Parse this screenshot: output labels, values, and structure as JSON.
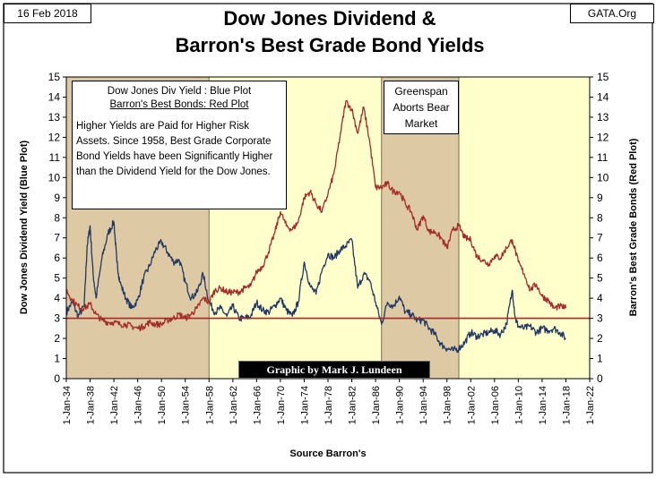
{
  "header": {
    "date": "16 Feb 2018",
    "site": "GATA.Org",
    "title_line1": "Dow Jones Dividend &",
    "title_line2": "Barron's Best Grade Bond Yields"
  },
  "legend": {
    "line1": "Dow Jones Div Yield : Blue Plot",
    "line2": "Barron's Best Bonds: Red Plot",
    "note": "Higher Yields are Paid for Higher Risk Assets.  Since 1958, Best Grade Corporate Bond Yields have been Significantly Higher than the Dividend Yield for the Dow Jones."
  },
  "annotation": {
    "text": "Greenspan Aborts Bear Market"
  },
  "credit": "Graphic by Mark J. Lundeen",
  "colors": {
    "plot_background": "#ffffcc",
    "shaded_region": "#ddc9a3",
    "dow_series": "#1f3864",
    "bond_series": "#a52a2a",
    "reference_line": "#a52a2a",
    "frame": "#000000"
  },
  "chart_data": {
    "type": "line",
    "xlabel": "Source Barron's",
    "ylabel_left": "Dow Jones Dividend Yield (Blue Plot)",
    "ylabel_right": "Barron's Best Grade Bonds (Red Plot)",
    "x_range": [
      "1934-01-01",
      "2022-01-01"
    ],
    "x_ticks": [
      "1-Jan-34",
      "1-Jan-38",
      "1-Jan-42",
      "1-Jan-46",
      "1-Jan-50",
      "1-Jan-54",
      "1-Jan-58",
      "1-Jan-62",
      "1-Jan-66",
      "1-Jan-70",
      "1-Jan-74",
      "1-Jan-78",
      "1-Jan-82",
      "1-Jan-86",
      "1-Jan-90",
      "1-Jan-94",
      "1-Jan-98",
      "1-Jan-02",
      "1-Jan-06",
      "1-Jan-10",
      "1-Jan-14",
      "1-Jan-18",
      "1-Jan-22"
    ],
    "ylim_left": [
      0,
      15
    ],
    "ylim_right": [
      0,
      15
    ],
    "y_ticks": [
      0,
      1,
      2,
      3,
      4,
      5,
      6,
      7,
      8,
      9,
      10,
      11,
      12,
      13,
      14,
      15
    ],
    "reference_line_y": 3,
    "shaded_periods": [
      [
        "1934-01-01",
        "1958-01-01"
      ],
      [
        "1987-01-01",
        "2000-01-01"
      ]
    ],
    "grid": false,
    "series": [
      {
        "name": "Dow Jones Div Yield",
        "axis": "left",
        "x": [
          1934,
          1935,
          1936,
          1937,
          1937.5,
          1938,
          1938.5,
          1939,
          1940,
          1941,
          1942,
          1942.5,
          1943,
          1944,
          1945,
          1946,
          1947,
          1948,
          1949,
          1950,
          1951,
          1952,
          1953,
          1954,
          1955,
          1956,
          1957,
          1958,
          1959,
          1960,
          1961,
          1962,
          1963,
          1964,
          1965,
          1966,
          1967,
          1968,
          1969,
          1970,
          1971,
          1972,
          1973,
          1974,
          1975,
          1976,
          1977,
          1978,
          1979,
          1980,
          1981,
          1982,
          1983,
          1984,
          1985,
          1986,
          1987,
          1988,
          1989,
          1990,
          1991,
          1992,
          1993,
          1994,
          1995,
          1996,
          1997,
          1998,
          1999,
          2000,
          2001,
          2002,
          2003,
          2004,
          2005,
          2006,
          2007,
          2008,
          2009,
          2009.5,
          2010,
          2011,
          2012,
          2013,
          2014,
          2015,
          2016,
          2017,
          2018
        ],
        "y": [
          3.3,
          3.8,
          3.1,
          3.6,
          6.6,
          7.6,
          5.2,
          4.0,
          6.0,
          7.2,
          7.8,
          5.8,
          4.8,
          4.0,
          3.5,
          3.9,
          5.0,
          5.6,
          6.4,
          6.8,
          6.3,
          5.8,
          5.9,
          4.8,
          4.0,
          4.3,
          5.2,
          3.8,
          3.3,
          3.5,
          3.1,
          3.6,
          3.0,
          3.0,
          3.1,
          3.8,
          3.4,
          3.3,
          3.6,
          4.0,
          3.4,
          3.1,
          3.8,
          5.8,
          4.6,
          4.2,
          5.4,
          6.2,
          6.0,
          6.4,
          6.6,
          6.9,
          4.5,
          5.2,
          4.9,
          3.8,
          2.7,
          3.8,
          3.6,
          4.1,
          3.3,
          3.2,
          2.9,
          2.9,
          2.5,
          2.2,
          1.7,
          1.5,
          1.4,
          1.5,
          1.8,
          2.3,
          2.1,
          2.2,
          2.3,
          2.4,
          2.2,
          2.7,
          4.4,
          3.0,
          2.6,
          2.5,
          2.6,
          2.3,
          2.5,
          2.4,
          2.5,
          2.3,
          2.0
        ]
      },
      {
        "name": "Barron's Best Grade Bonds",
        "axis": "right",
        "x": [
          1934,
          1935,
          1936,
          1937,
          1938,
          1939,
          1940,
          1941,
          1942,
          1943,
          1944,
          1945,
          1946,
          1947,
          1948,
          1949,
          1950,
          1951,
          1952,
          1953,
          1954,
          1955,
          1956,
          1957,
          1958,
          1959,
          1960,
          1961,
          1962,
          1963,
          1964,
          1965,
          1966,
          1967,
          1968,
          1969,
          1970,
          1971,
          1972,
          1973,
          1974,
          1975,
          1976,
          1977,
          1978,
          1979,
          1980,
          1981,
          1982,
          1983,
          1984,
          1985,
          1986,
          1987,
          1988,
          1989,
          1990,
          1991,
          1992,
          1993,
          1994,
          1995,
          1996,
          1997,
          1998,
          1999,
          2000,
          2001,
          2002,
          2003,
          2004,
          2005,
          2006,
          2007,
          2008,
          2009,
          2010,
          2011,
          2012,
          2013,
          2014,
          2015,
          2016,
          2017,
          2018
        ],
        "y": [
          4.4,
          3.9,
          3.6,
          3.5,
          3.7,
          3.2,
          2.9,
          2.8,
          2.8,
          2.7,
          2.7,
          2.6,
          2.5,
          2.6,
          2.8,
          2.7,
          2.7,
          2.9,
          3.0,
          3.2,
          3.0,
          3.2,
          3.5,
          4.0,
          3.8,
          4.4,
          4.5,
          4.3,
          4.3,
          4.3,
          4.5,
          4.6,
          5.3,
          5.6,
          6.3,
          7.2,
          8.3,
          7.6,
          7.4,
          7.8,
          9.0,
          9.3,
          8.7,
          8.3,
          9.2,
          10.2,
          12.0,
          13.8,
          13.4,
          12.2,
          13.5,
          11.8,
          9.5,
          9.5,
          9.7,
          9.3,
          9.3,
          8.7,
          8.3,
          7.4,
          8.1,
          7.3,
          7.3,
          7.0,
          6.5,
          7.4,
          7.6,
          7.0,
          6.9,
          6.1,
          5.9,
          5.7,
          6.1,
          6.0,
          6.5,
          6.9,
          5.8,
          5.2,
          4.4,
          4.7,
          4.1,
          3.9,
          3.5,
          3.6,
          3.5
        ]
      }
    ]
  }
}
